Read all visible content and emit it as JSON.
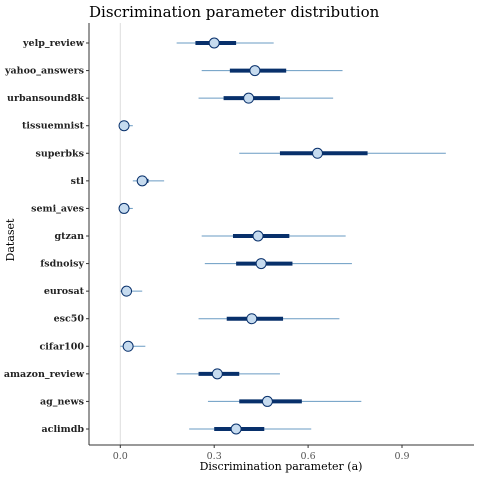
{
  "chart_data": {
    "type": "interval",
    "title": "Discrimination parameter distribution",
    "xlabel": "Discrimination parameter (a)",
    "ylabel": "Dataset",
    "xlim": [
      -0.1,
      1.13
    ],
    "xticks": [
      0.0,
      0.3,
      0.6,
      0.9
    ],
    "xtick_labels": [
      "0.0",
      "0.3",
      "0.6",
      "0.9"
    ],
    "reference_line": 0.0,
    "colors": {
      "thin_interval": "#6a9bc3",
      "thick_interval": "#08306b",
      "point_fill": "#c6dbef",
      "point_stroke": "#08306b",
      "reference": "#dddddd",
      "axis": "#333333"
    },
    "categories": [
      "yelp_review",
      "yahoo_answers",
      "urbansound8k",
      "tissuemnist",
      "superbks",
      "stl",
      "semi_aves",
      "gtzan",
      "fsdnoisy",
      "eurosat",
      "esc50",
      "cifar100",
      "amazon_review",
      "ag_news",
      "aclimdb"
    ],
    "median": [
      0.3,
      0.43,
      0.41,
      0.012,
      0.63,
      0.07,
      0.012,
      0.44,
      0.45,
      0.02,
      0.42,
      0.025,
      0.31,
      0.47,
      0.37
    ],
    "inner_low": [
      0.24,
      0.35,
      0.33,
      0.006,
      0.51,
      0.06,
      0.006,
      0.36,
      0.37,
      0.015,
      0.34,
      0.02,
      0.25,
      0.38,
      0.3
    ],
    "inner_high": [
      0.37,
      0.53,
      0.51,
      0.018,
      0.79,
      0.09,
      0.018,
      0.54,
      0.55,
      0.025,
      0.52,
      0.03,
      0.38,
      0.58,
      0.46
    ],
    "outer_low": [
      0.18,
      0.26,
      0.25,
      0.0,
      0.38,
      0.04,
      0.0,
      0.26,
      0.27,
      0.0,
      0.25,
      0.0,
      0.18,
      0.28,
      0.22
    ],
    "outer_high": [
      0.49,
      0.71,
      0.68,
      0.04,
      1.04,
      0.14,
      0.04,
      0.72,
      0.74,
      0.07,
      0.7,
      0.08,
      0.51,
      0.77,
      0.61
    ]
  }
}
